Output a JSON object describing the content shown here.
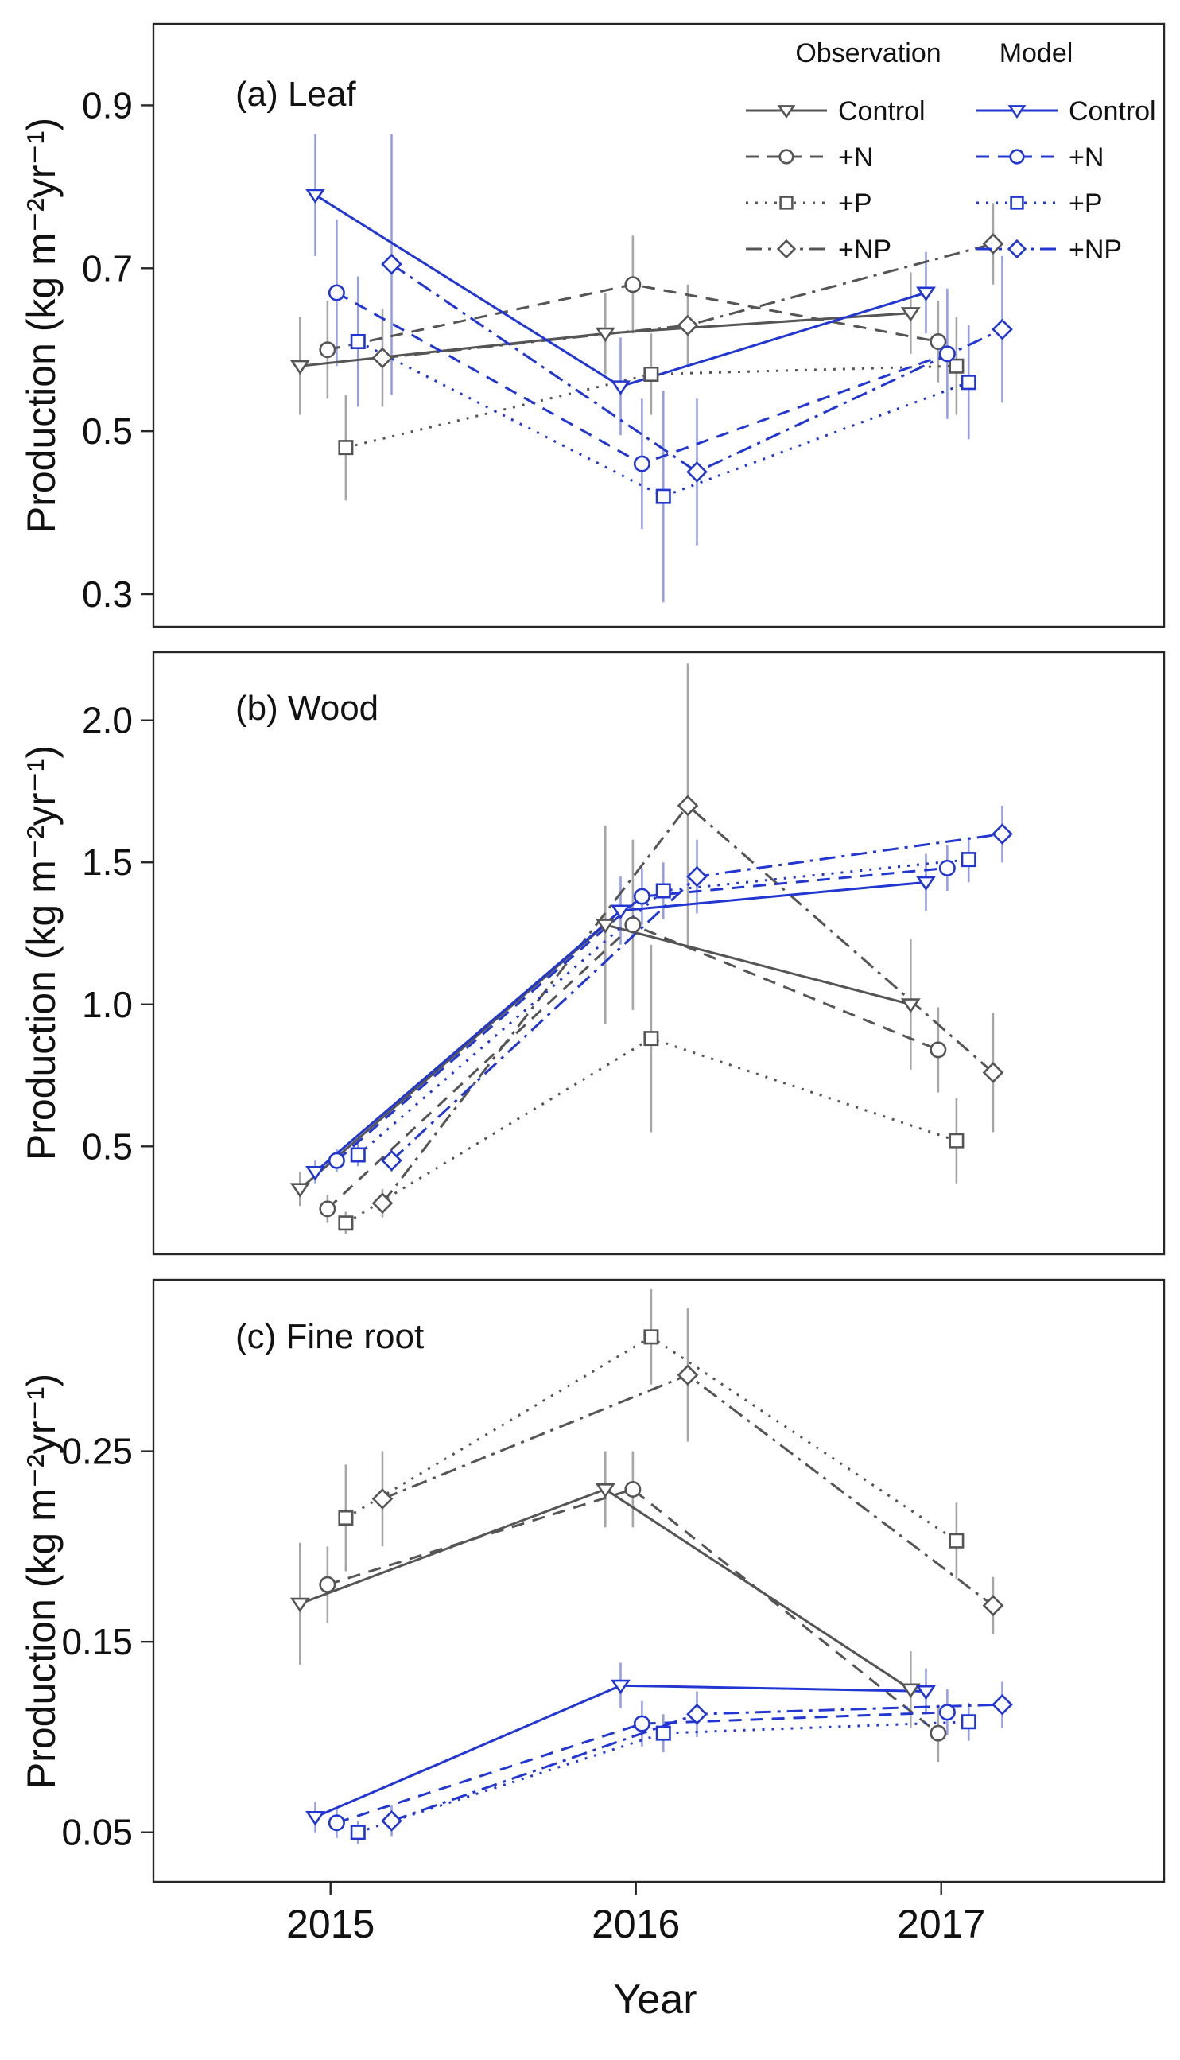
{
  "figure": {
    "xlabel": "Year",
    "x_tick_labels": [
      "2015",
      "2016",
      "2017"
    ],
    "colors": {
      "observation": "#555555",
      "model": "#2236d1",
      "observation_error": "#a6a6a6",
      "model_error": "#93a0e8",
      "axis": "#262626",
      "text": "#111111"
    },
    "legend": {
      "column_headers": [
        "Observation",
        "Model"
      ],
      "row_labels": [
        "Control",
        "+N",
        "+P",
        "+NP"
      ]
    }
  },
  "chart_data": [
    {
      "type": "line",
      "title": "(a) Leaf",
      "ylabel": "Production (kg m⁻²yr⁻¹)",
      "xlabel": "Year",
      "x": [
        2015,
        2016,
        2017
      ],
      "xlim": [
        2014.42,
        2017.73
      ],
      "ylim": [
        0.26,
        1.0
      ],
      "yticks": [
        "0.3",
        "0.5",
        "0.7",
        "0.9"
      ],
      "legend_visible": true,
      "show_x_axis": false,
      "series": [
        {
          "name": "Control",
          "group": "Observation",
          "marker": "triangle-down",
          "dash": "solid",
          "x_offset": -0.1,
          "values": [
            0.58,
            0.62,
            0.645
          ],
          "errors": [
            0.06,
            0.05,
            0.05
          ]
        },
        {
          "name": "+N",
          "group": "Observation",
          "marker": "circle",
          "dash": "dashed",
          "x_offset": -0.01,
          "values": [
            0.6,
            0.68,
            0.61
          ],
          "errors": [
            0.06,
            0.06,
            0.05
          ]
        },
        {
          "name": "+P",
          "group": "Observation",
          "marker": "square",
          "dash": "dotted",
          "x_offset": 0.05,
          "values": [
            0.48,
            0.57,
            0.58
          ],
          "errors": [
            0.065,
            0.05,
            0.06
          ]
        },
        {
          "name": "+NP",
          "group": "Observation",
          "marker": "diamond",
          "dash": "dashdot",
          "x_offset": 0.17,
          "values": [
            0.59,
            0.63,
            0.73
          ],
          "errors": [
            0.06,
            0.05,
            0.05
          ]
        },
        {
          "name": "Control",
          "group": "Model",
          "marker": "triangle-down",
          "dash": "solid",
          "x_offset": -0.05,
          "values": [
            0.79,
            0.555,
            0.67
          ],
          "errors": [
            0.075,
            0.06,
            0.05
          ]
        },
        {
          "name": "+N",
          "group": "Model",
          "marker": "circle",
          "dash": "dashed",
          "x_offset": 0.02,
          "values": [
            0.67,
            0.46,
            0.595
          ],
          "errors": [
            0.09,
            0.08,
            0.08
          ]
        },
        {
          "name": "+P",
          "group": "Model",
          "marker": "square",
          "dash": "dotted",
          "x_offset": 0.09,
          "values": [
            0.61,
            0.42,
            0.56
          ],
          "errors": [
            0.08,
            0.13,
            0.07
          ]
        },
        {
          "name": "+NP",
          "group": "Model",
          "marker": "diamond",
          "dash": "dashdot",
          "x_offset": 0.2,
          "values": [
            0.705,
            0.45,
            0.625
          ],
          "errors": [
            0.16,
            0.09,
            0.09
          ]
        }
      ]
    },
    {
      "type": "line",
      "title": "(b) Wood",
      "ylabel": "Production (kg m⁻²yr⁻¹)",
      "xlabel": "Year",
      "x": [
        2015,
        2016,
        2017
      ],
      "xlim": [
        2014.42,
        2017.73
      ],
      "ylim": [
        0.12,
        2.24
      ],
      "yticks": [
        "0.5",
        "1.0",
        "1.5",
        "2.0"
      ],
      "legend_visible": false,
      "show_x_axis": false,
      "series": [
        {
          "name": "Control",
          "group": "Observation",
          "marker": "triangle-down",
          "dash": "solid",
          "x_offset": -0.1,
          "values": [
            0.35,
            1.28,
            1.0
          ],
          "errors": [
            0.06,
            0.35,
            0.23
          ]
        },
        {
          "name": "+N",
          "group": "Observation",
          "marker": "circle",
          "dash": "dashed",
          "x_offset": -0.01,
          "values": [
            0.28,
            1.28,
            0.84
          ],
          "errors": [
            0.05,
            0.3,
            0.15
          ]
        },
        {
          "name": "+P",
          "group": "Observation",
          "marker": "square",
          "dash": "dotted",
          "x_offset": 0.05,
          "values": [
            0.23,
            0.88,
            0.52
          ],
          "errors": [
            0.04,
            0.33,
            0.15
          ]
        },
        {
          "name": "+NP",
          "group": "Observation",
          "marker": "diamond",
          "dash": "dashdot",
          "x_offset": 0.17,
          "values": [
            0.3,
            1.7,
            0.76
          ],
          "errors": [
            0.05,
            0.5,
            0.21
          ]
        },
        {
          "name": "Control",
          "group": "Model",
          "marker": "triangle-down",
          "dash": "solid",
          "x_offset": -0.05,
          "values": [
            0.41,
            1.33,
            1.43
          ],
          "errors": [
            0.04,
            0.12,
            0.1
          ]
        },
        {
          "name": "+N",
          "group": "Model",
          "marker": "circle",
          "dash": "dashed",
          "x_offset": 0.02,
          "values": [
            0.45,
            1.38,
            1.48
          ],
          "errors": [
            0.04,
            0.1,
            0.08
          ]
        },
        {
          "name": "+P",
          "group": "Model",
          "marker": "square",
          "dash": "dotted",
          "x_offset": 0.09,
          "values": [
            0.47,
            1.4,
            1.51
          ],
          "errors": [
            0.04,
            0.1,
            0.08
          ]
        },
        {
          "name": "+NP",
          "group": "Model",
          "marker": "diamond",
          "dash": "dashdot",
          "x_offset": 0.2,
          "values": [
            0.45,
            1.45,
            1.6
          ],
          "errors": [
            0.04,
            0.13,
            0.1
          ]
        }
      ]
    },
    {
      "type": "line",
      "title": "(c) Fine root",
      "ylabel": "Production (kg m⁻²yr⁻¹)",
      "xlabel": "Year",
      "x": [
        2015,
        2016,
        2017
      ],
      "xlim": [
        2014.42,
        2017.73
      ],
      "ylim": [
        0.024,
        0.34
      ],
      "yticks": [
        "0.05",
        "0.15",
        "0.25"
      ],
      "legend_visible": false,
      "show_x_axis": true,
      "series": [
        {
          "name": "Control",
          "group": "Observation",
          "marker": "triangle-down",
          "dash": "solid",
          "x_offset": -0.1,
          "values": [
            0.17,
            0.23,
            0.125
          ],
          "errors": [
            0.032,
            0.02,
            0.02
          ]
        },
        {
          "name": "+N",
          "group": "Observation",
          "marker": "circle",
          "dash": "dashed",
          "x_offset": -0.01,
          "values": [
            0.18,
            0.23,
            0.102
          ],
          "errors": [
            0.02,
            0.02,
            0.015
          ]
        },
        {
          "name": "+P",
          "group": "Observation",
          "marker": "square",
          "dash": "dotted",
          "x_offset": 0.05,
          "values": [
            0.215,
            0.31,
            0.203
          ],
          "errors": [
            0.028,
            0.025,
            0.02
          ]
        },
        {
          "name": "+NP",
          "group": "Observation",
          "marker": "diamond",
          "dash": "dashdot",
          "x_offset": 0.17,
          "values": [
            0.225,
            0.29,
            0.169
          ],
          "errors": [
            0.025,
            0.035,
            0.015
          ]
        },
        {
          "name": "Control",
          "group": "Model",
          "marker": "triangle-down",
          "dash": "solid",
          "x_offset": -0.05,
          "values": [
            0.058,
            0.127,
            0.124
          ],
          "errors": [
            0.008,
            0.012,
            0.012
          ]
        },
        {
          "name": "+N",
          "group": "Model",
          "marker": "circle",
          "dash": "dashed",
          "x_offset": 0.02,
          "values": [
            0.055,
            0.107,
            0.113
          ],
          "errors": [
            0.008,
            0.012,
            0.012
          ]
        },
        {
          "name": "+P",
          "group": "Model",
          "marker": "square",
          "dash": "dotted",
          "x_offset": 0.09,
          "values": [
            0.05,
            0.102,
            0.108
          ],
          "errors": [
            0.006,
            0.01,
            0.01
          ]
        },
        {
          "name": "+NP",
          "group": "Model",
          "marker": "diamond",
          "dash": "dashdot",
          "x_offset": 0.2,
          "values": [
            0.056,
            0.112,
            0.117
          ],
          "errors": [
            0.008,
            0.012,
            0.012
          ]
        }
      ]
    }
  ]
}
